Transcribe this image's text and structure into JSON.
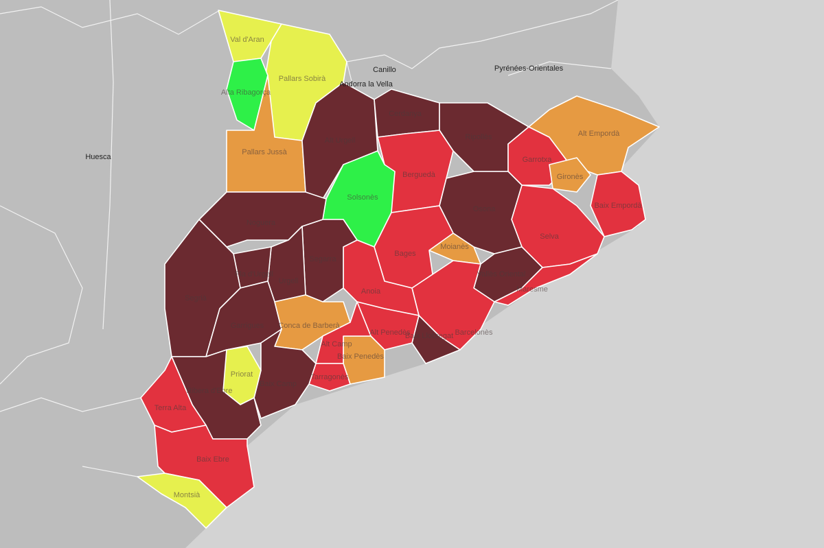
{
  "map": {
    "regions": [
      {
        "name": "Val d'Aran",
        "color": "#e6f04e"
      },
      {
        "name": "Pallars Sobirà",
        "color": "#e6f04e"
      },
      {
        "name": "Alta Ribagorça",
        "color": "#2ef048"
      },
      {
        "name": "Pallars Jussà",
        "color": "#e69a42"
      },
      {
        "name": "Alt Urgell",
        "color": "#6b2a30"
      },
      {
        "name": "Cerdanya",
        "color": "#6b2a30"
      },
      {
        "name": "Ripollès",
        "color": "#6b2a30"
      },
      {
        "name": "Berguedà",
        "color": "#e2323f"
      },
      {
        "name": "Solsonès",
        "color": "#2ef048"
      },
      {
        "name": "Garrotxa",
        "color": "#e2323f"
      },
      {
        "name": "Alt Empordà",
        "color": "#e69a42"
      },
      {
        "name": "Gironès",
        "color": "#e69a42"
      },
      {
        "name": "Baix Empordà",
        "color": "#e2323f"
      },
      {
        "name": "Selva",
        "color": "#e2323f"
      },
      {
        "name": "Osona",
        "color": "#6b2a30"
      },
      {
        "name": "Moianès",
        "color": "#e69a42"
      },
      {
        "name": "Vallès Oriental",
        "color": "#6b2a30"
      },
      {
        "name": "Maresme",
        "color": "#e2323f"
      },
      {
        "name": "Bages",
        "color": "#e2323f"
      },
      {
        "name": "Barcelonès",
        "color": "#e2323f"
      },
      {
        "name": "Baix Llobregat",
        "color": "#6b2a30"
      },
      {
        "name": "Anoia",
        "color": "#e2323f"
      },
      {
        "name": "Alt Penedès",
        "color": "#e2323f"
      },
      {
        "name": "Baix Penedès",
        "color": "#e69a42"
      },
      {
        "name": "Segarra",
        "color": "#6b2a30"
      },
      {
        "name": "Noguera",
        "color": "#6b2a30"
      },
      {
        "name": "Urgell",
        "color": "#6b2a30"
      },
      {
        "name": "Pla d'Urgell",
        "color": "#6b2a30"
      },
      {
        "name": "Segrià",
        "color": "#6b2a30"
      },
      {
        "name": "Garrigues",
        "color": "#6b2a30"
      },
      {
        "name": "Conca de Barberà",
        "color": "#e69a42"
      },
      {
        "name": "Alt Camp",
        "color": "#e2323f"
      },
      {
        "name": "Tarragonès",
        "color": "#e2323f"
      },
      {
        "name": "Baix Camp",
        "color": "#6b2a30"
      },
      {
        "name": "Priorat",
        "color": "#e6f04e"
      },
      {
        "name": "Ribera d'Ebre",
        "color": "#6b2a30"
      },
      {
        "name": "Terra Alta",
        "color": "#e2323f"
      },
      {
        "name": "Baix Ebre",
        "color": "#e2323f"
      },
      {
        "name": "Montsià",
        "color": "#e6f04e"
      }
    ],
    "places": [
      "Huesca",
      "Canillo",
      "Andorra la Vella",
      "Pyrénées-Orientales"
    ]
  }
}
